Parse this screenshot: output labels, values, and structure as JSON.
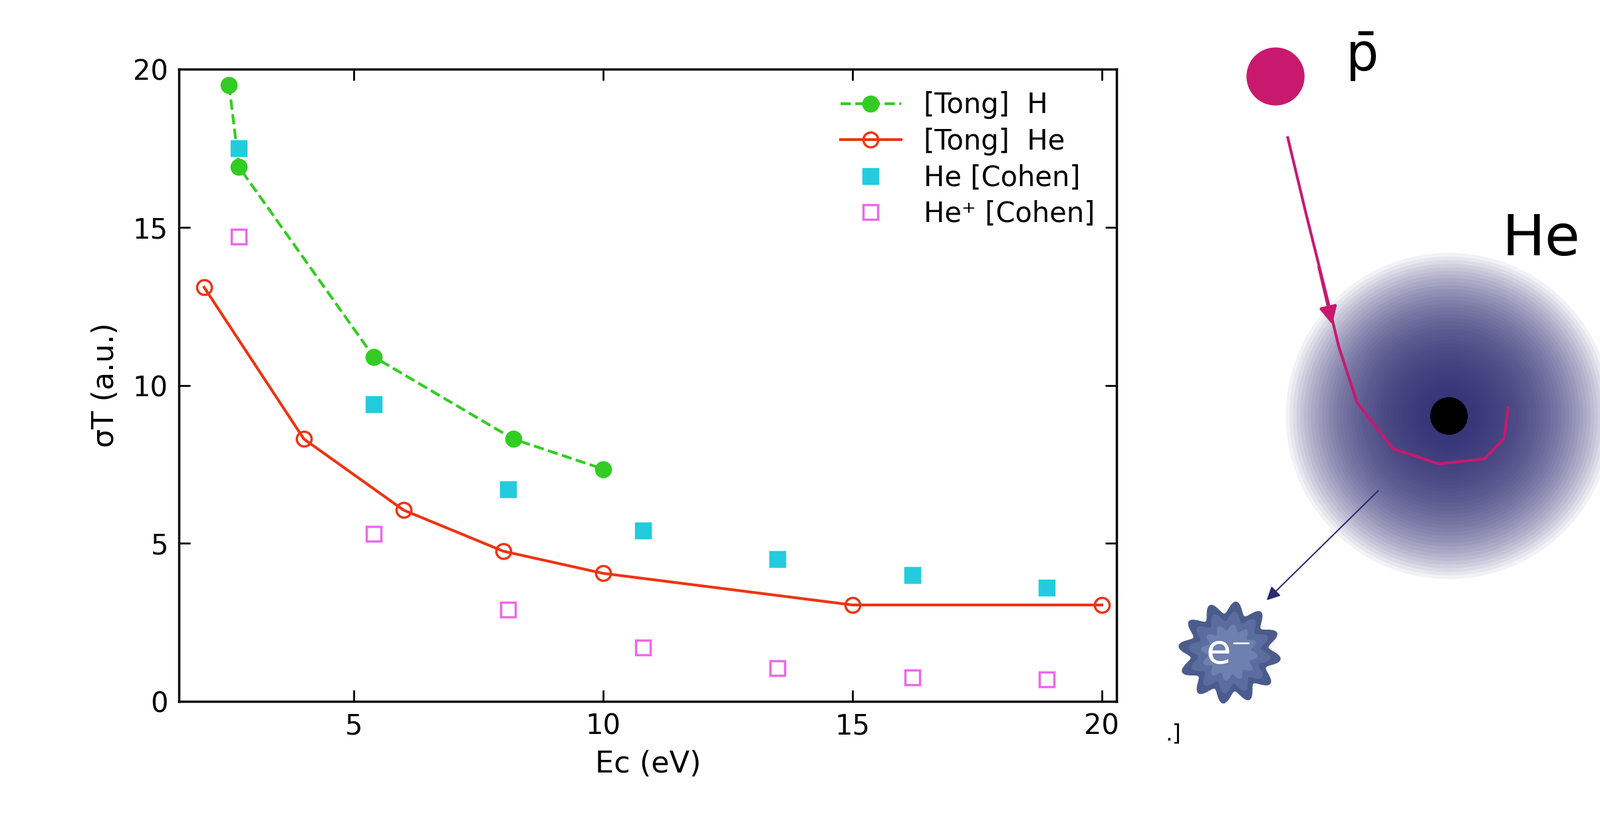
{
  "chart_data": {
    "type": "line",
    "x_label": "Ec (eV)",
    "y_label": "σT (a.u.)",
    "xlim": [
      1.5,
      20.3
    ],
    "ylim": [
      0,
      20
    ],
    "xticks": [
      5,
      10,
      15,
      20
    ],
    "yticks": [
      0,
      5,
      10,
      15,
      20
    ],
    "grid": false,
    "legend": "upper right",
    "series": [
      {
        "name": "[Tong]  H",
        "type": "line",
        "color": "#33cc22",
        "marker": "circle",
        "line_style": "dashed",
        "x": [
          2.5,
          2.7,
          5.4,
          8.2,
          10
        ],
        "values": [
          19.5,
          16.9,
          10.9,
          8.3,
          7.35
        ]
      },
      {
        "name": "[Tong]  He",
        "type": "line",
        "color": "#ee3311",
        "marker": "open_circle",
        "line_style": "solid",
        "x": [
          2,
          4,
          6,
          8,
          10,
          15,
          20
        ],
        "values": [
          13.1,
          8.3,
          6.05,
          4.75,
          4.05,
          3.05,
          3.05
        ]
      },
      {
        "name": "He [Cohen]",
        "type": "scatter",
        "color": "#22ccdd",
        "marker": "square",
        "line_style": "none",
        "x": [
          2.7,
          5.4,
          8.1,
          10.8,
          13.5,
          16.2,
          18.9
        ],
        "values": [
          17.5,
          9.4,
          6.7,
          5.4,
          4.5,
          4.0,
          3.6
        ]
      },
      {
        "name": "He⁺ [Cohen]",
        "type": "scatter",
        "color": "#ee66ee",
        "marker": "open_square",
        "line_style": "none",
        "x": [
          2.7,
          5.4,
          8.1,
          10.8,
          13.5,
          16.2,
          18.9
        ],
        "values": [
          14.7,
          5.3,
          2.9,
          1.7,
          1.05,
          0.75,
          0.7
        ]
      }
    ]
  },
  "diagram": {
    "projectile": "p̄",
    "target": "He",
    "ejected": "e⁻",
    "fragment": ".]"
  }
}
